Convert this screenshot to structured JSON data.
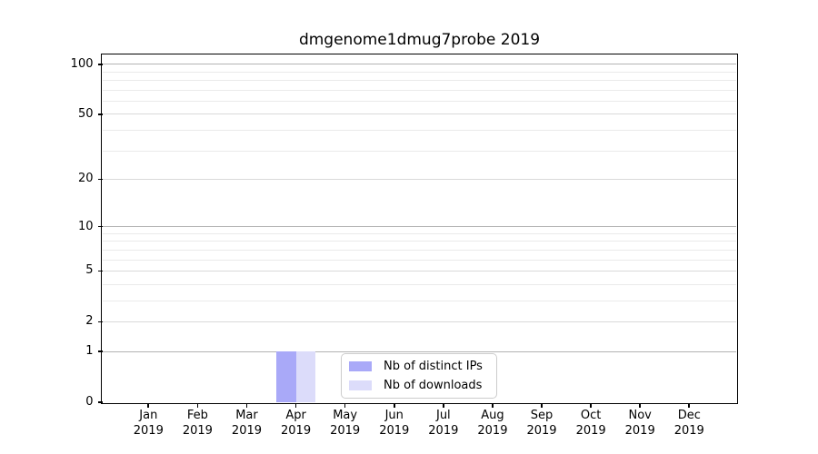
{
  "title": "dmgenome1dmug7probe 2019",
  "chart_data": {
    "type": "bar",
    "title": "dmgenome1dmug7probe 2019",
    "categories": [
      "Jan 2019",
      "Feb 2019",
      "Mar 2019",
      "Apr 2019",
      "May 2019",
      "Jun 2019",
      "Jul 2019",
      "Aug 2019",
      "Sep 2019",
      "Oct 2019",
      "Nov 2019",
      "Dec 2019"
    ],
    "x_months": [
      "Jan",
      "Feb",
      "Mar",
      "Apr",
      "May",
      "Jun",
      "Jul",
      "Aug",
      "Sep",
      "Oct",
      "Nov",
      "Dec"
    ],
    "x_year": "2019",
    "series": [
      {
        "name": "Nb of distinct IPs",
        "color": "#a9a9f8",
        "values": [
          0,
          0,
          0,
          1,
          0,
          0,
          0,
          0,
          0,
          0,
          0,
          0
        ]
      },
      {
        "name": "Nb of downloads",
        "color": "#dcdcfa",
        "values": [
          0,
          0,
          0,
          1,
          0,
          0,
          0,
          0,
          0,
          0,
          0,
          0
        ]
      }
    ],
    "xlabel": "",
    "ylabel": "",
    "y_axis": {
      "scale": "log(1+y)",
      "ylim": [
        0,
        113
      ],
      "tick_labels": [
        0,
        1,
        2,
        5,
        10,
        20,
        50,
        100
      ],
      "decade_gridlines": [
        1,
        10,
        100
      ],
      "sub_gridlines": [
        2,
        5,
        20,
        50
      ],
      "minor_gridlines": [
        3,
        4,
        6,
        7,
        8,
        9,
        30,
        40,
        60,
        70,
        80,
        90
      ]
    },
    "grid": true,
    "legend_position": "lower center",
    "legend_entries": [
      "Nb of distinct IPs",
      "Nb of downloads"
    ]
  },
  "colors": {
    "background": "#ffffff",
    "axis_frame": "#000000",
    "decade_grid": "#b3b3b3",
    "sub_grid": "#d9d9d9",
    "minor_grid": "#eaeaea",
    "bar_ips": "#a9a9f8",
    "bar_downloads": "#dcdcfa",
    "legend_border": "#cccccc",
    "text": "#000000"
  }
}
